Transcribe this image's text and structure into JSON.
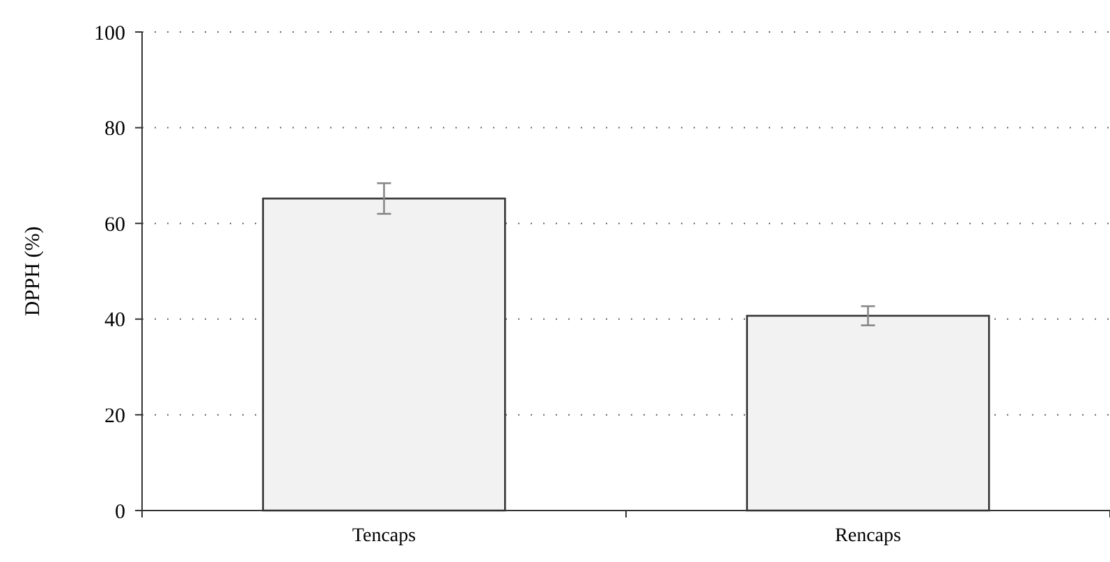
{
  "chart_data": {
    "type": "bar",
    "ylabel": "DPPH (%)",
    "categories": [
      "Tencaps",
      "Rencaps"
    ],
    "values": [
      65.2,
      40.7
    ],
    "errors": [
      3.2,
      2.0
    ],
    "color": "#f2f2f2",
    "ylim": [
      0,
      100
    ],
    "yticks": [
      0,
      20,
      40,
      60,
      80,
      100
    ],
    "grid": "y"
  }
}
